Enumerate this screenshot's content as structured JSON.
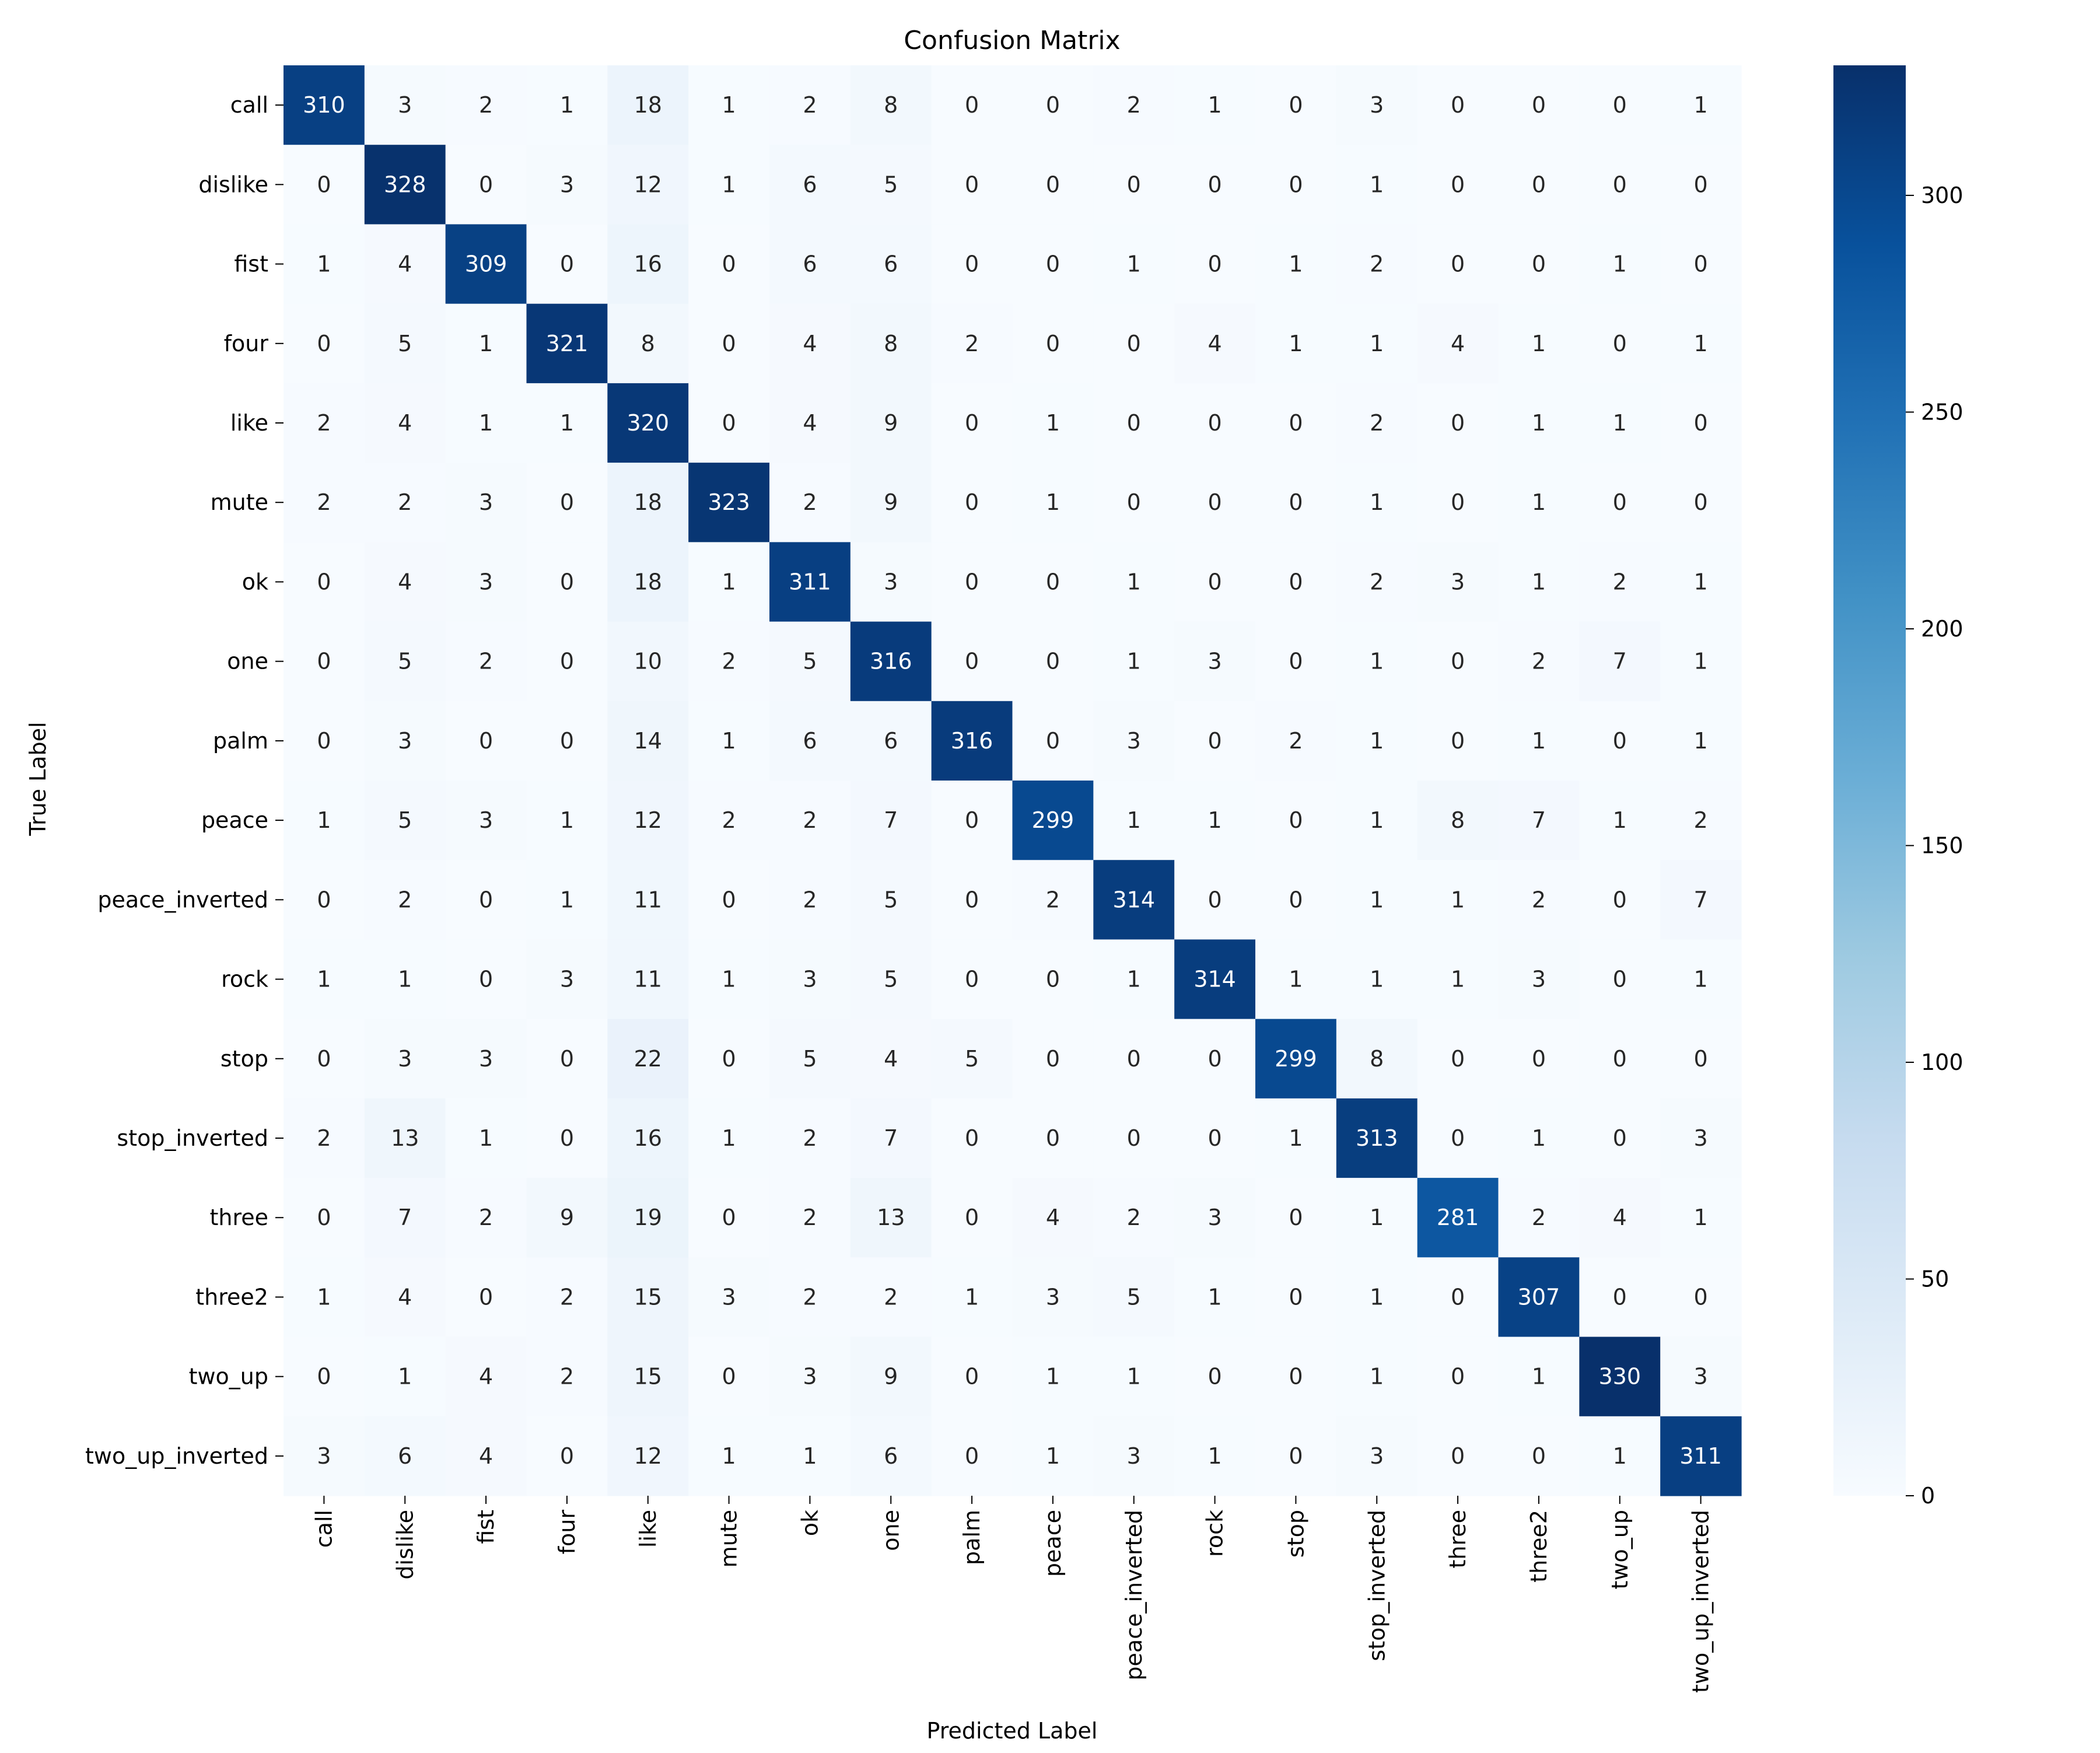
{
  "chart_data": {
    "type": "heatmap",
    "title": "Confusion Matrix",
    "xlabel": "Predicted Label",
    "ylabel": "True Label",
    "x_categories": [
      "call",
      "dislike",
      "fist",
      "four",
      "like",
      "mute",
      "ok",
      "one",
      "palm",
      "peace",
      "peace_inverted",
      "rock",
      "stop",
      "stop_inverted",
      "three",
      "three2",
      "two_up",
      "two_up_inverted"
    ],
    "y_categories": [
      "call",
      "dislike",
      "fist",
      "four",
      "like",
      "mute",
      "ok",
      "one",
      "palm",
      "peace",
      "peace_inverted",
      "rock",
      "stop",
      "stop_inverted",
      "three",
      "three2",
      "two_up",
      "two_up_inverted"
    ],
    "values": [
      [
        310,
        3,
        2,
        1,
        18,
        1,
        2,
        8,
        0,
        0,
        2,
        1,
        0,
        3,
        0,
        0,
        0,
        1
      ],
      [
        0,
        328,
        0,
        3,
        12,
        1,
        6,
        5,
        0,
        0,
        0,
        0,
        0,
        1,
        0,
        0,
        0,
        0
      ],
      [
        1,
        4,
        309,
        0,
        16,
        0,
        6,
        6,
        0,
        0,
        1,
        0,
        1,
        2,
        0,
        0,
        1,
        0
      ],
      [
        0,
        5,
        1,
        321,
        8,
        0,
        4,
        8,
        2,
        0,
        0,
        4,
        1,
        1,
        4,
        1,
        0,
        1
      ],
      [
        2,
        4,
        1,
        1,
        320,
        0,
        4,
        9,
        0,
        1,
        0,
        0,
        0,
        2,
        0,
        1,
        1,
        0
      ],
      [
        2,
        2,
        3,
        0,
        18,
        323,
        2,
        9,
        0,
        1,
        0,
        0,
        0,
        1,
        0,
        1,
        0,
        0
      ],
      [
        0,
        4,
        3,
        0,
        18,
        1,
        311,
        3,
        0,
        0,
        1,
        0,
        0,
        2,
        3,
        1,
        2,
        1
      ],
      [
        0,
        5,
        2,
        0,
        10,
        2,
        5,
        316,
        0,
        0,
        1,
        3,
        0,
        1,
        0,
        2,
        7,
        1
      ],
      [
        0,
        3,
        0,
        0,
        14,
        1,
        6,
        6,
        316,
        0,
        3,
        0,
        2,
        1,
        0,
        1,
        0,
        1
      ],
      [
        1,
        5,
        3,
        1,
        12,
        2,
        2,
        7,
        0,
        299,
        1,
        1,
        0,
        1,
        8,
        7,
        1,
        2
      ],
      [
        0,
        2,
        0,
        1,
        11,
        0,
        2,
        5,
        0,
        2,
        314,
        0,
        0,
        1,
        1,
        2,
        0,
        7
      ],
      [
        1,
        1,
        0,
        3,
        11,
        1,
        3,
        5,
        0,
        0,
        1,
        314,
        1,
        1,
        1,
        3,
        0,
        1
      ],
      [
        0,
        3,
        3,
        0,
        22,
        0,
        5,
        4,
        5,
        0,
        0,
        0,
        299,
        8,
        0,
        0,
        0,
        0
      ],
      [
        2,
        13,
        1,
        0,
        16,
        1,
        2,
        7,
        0,
        0,
        0,
        0,
        1,
        313,
        0,
        1,
        0,
        3
      ],
      [
        0,
        7,
        2,
        9,
        19,
        0,
        2,
        13,
        0,
        4,
        2,
        3,
        0,
        1,
        281,
        2,
        4,
        1
      ],
      [
        1,
        4,
        0,
        2,
        15,
        3,
        2,
        2,
        1,
        3,
        5,
        1,
        0,
        1,
        0,
        307,
        0,
        0
      ],
      [
        0,
        1,
        4,
        2,
        15,
        0,
        3,
        9,
        0,
        1,
        1,
        0,
        0,
        1,
        0,
        1,
        330,
        3
      ],
      [
        3,
        6,
        4,
        0,
        12,
        1,
        1,
        6,
        0,
        1,
        3,
        1,
        0,
        3,
        0,
        0,
        1,
        311
      ]
    ],
    "colorbar": {
      "range": [
        0,
        330
      ],
      "ticks": [
        0,
        50,
        100,
        150,
        200,
        250,
        300
      ],
      "colormap": "Blues"
    },
    "colors": {
      "low": "#f7fbff",
      "high": "#08306b",
      "text_dark": "#262626",
      "text_light": "#ffffff"
    },
    "grid": false
  }
}
